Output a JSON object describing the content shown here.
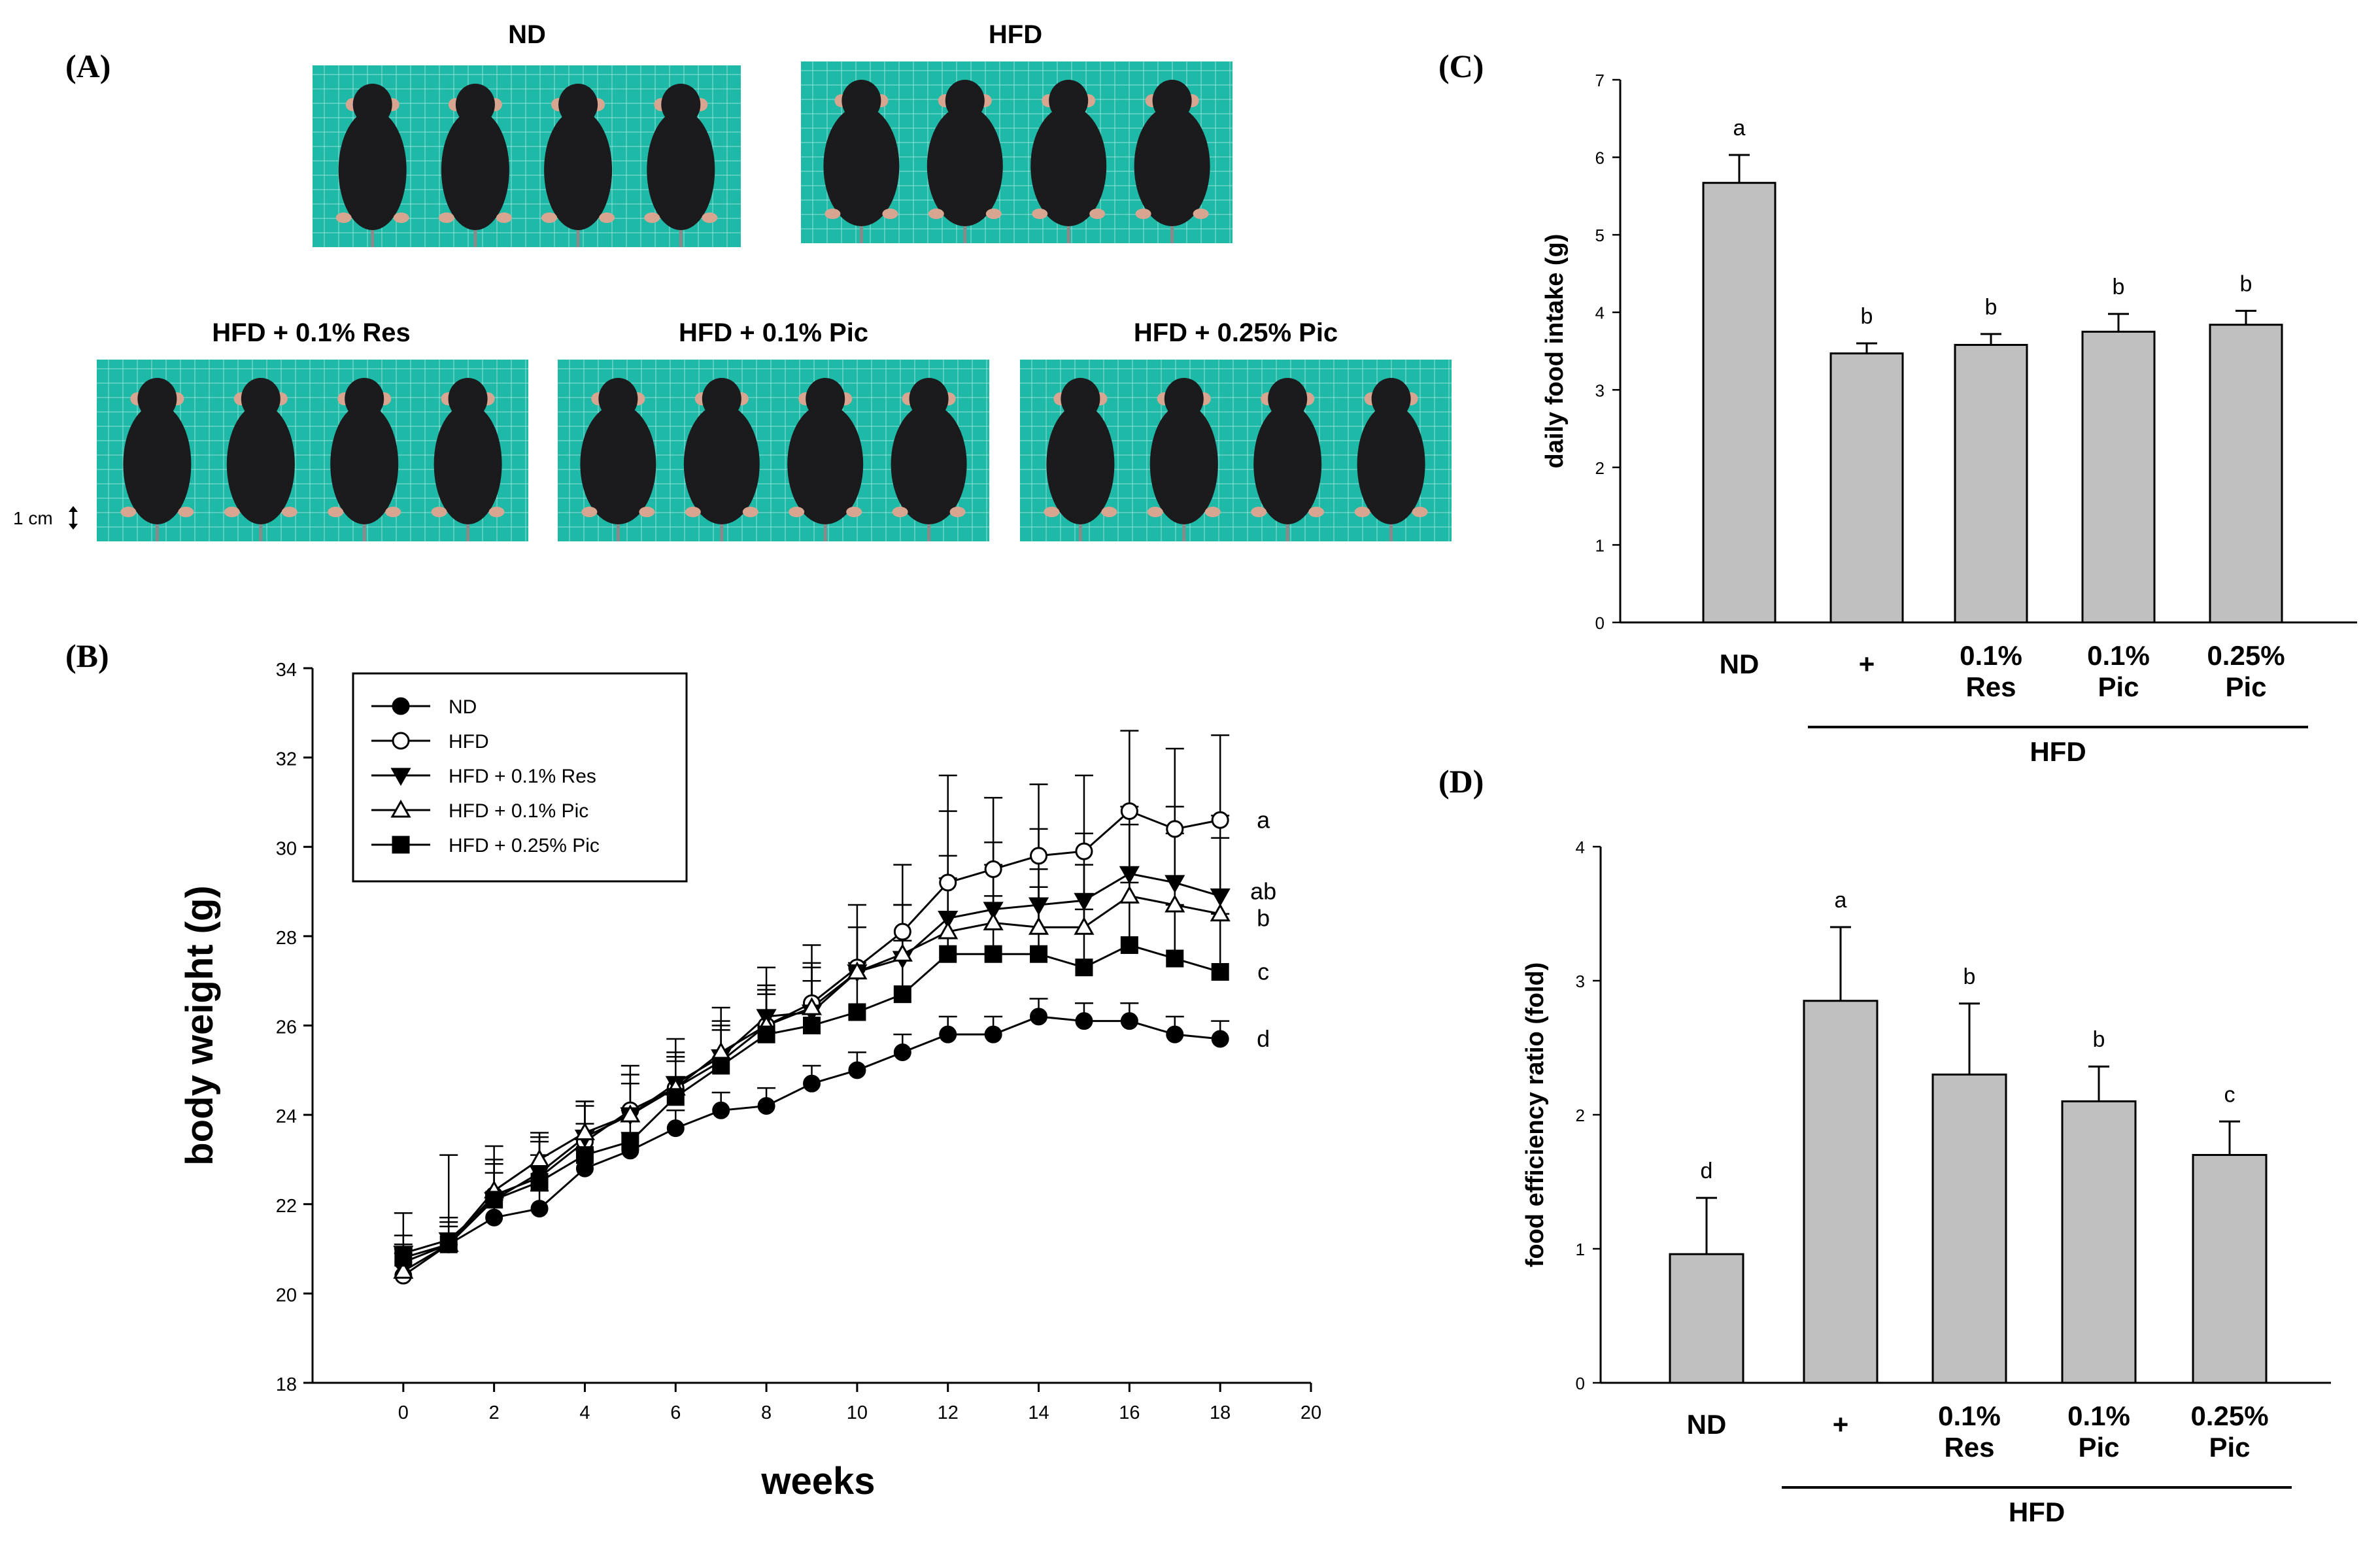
{
  "panels": {
    "a": "(A)",
    "b": "(B)",
    "c": "(C)",
    "d": "(D)"
  },
  "photos": {
    "titles": [
      "ND",
      "HFD",
      "HFD + 0.1% Res",
      "HFD + 0.1% Pic",
      "HFD + 0.25% Pic"
    ],
    "scale_label": "1 cm",
    "colors": {
      "mat": "#1fb9a8",
      "grid": "#9ee6dc",
      "mouse": "#1b1b1d",
      "ear": "#d8a690"
    }
  },
  "chart_data": [
    {
      "id": "B",
      "type": "line",
      "title": "",
      "xlabel": "weeks",
      "ylabel": "body weight (g)",
      "xlim": [
        -2,
        20
      ],
      "ylim": [
        18,
        34
      ],
      "xticks": [
        0,
        2,
        4,
        6,
        8,
        10,
        12,
        14,
        16,
        18,
        20
      ],
      "yticks": [
        18,
        20,
        22,
        24,
        26,
        28,
        30,
        32,
        34
      ],
      "x": [
        0,
        1,
        2,
        3,
        4,
        5,
        6,
        7,
        8,
        9,
        10,
        11,
        12,
        13,
        14,
        15,
        16,
        17,
        18
      ],
      "legend_position": "top-left",
      "series": [
        {
          "name": "ND",
          "marker": "circle-filled",
          "values": [
            20.7,
            21.1,
            21.7,
            21.9,
            22.8,
            23.2,
            23.7,
            24.1,
            24.2,
            24.7,
            25.0,
            25.4,
            25.8,
            25.8,
            26.2,
            26.1,
            26.1,
            25.8,
            25.7
          ],
          "errors": [
            0.4,
            0.4,
            0.4,
            0.4,
            0.4,
            0.4,
            0.4,
            0.4,
            0.4,
            0.4,
            0.4,
            0.4,
            0.4,
            0.4,
            0.4,
            0.4,
            0.4,
            0.4,
            0.4
          ]
        },
        {
          "name": "HFD",
          "marker": "circle-open",
          "values": [
            20.4,
            21.1,
            22.2,
            22.6,
            23.4,
            24.1,
            24.6,
            25.2,
            26.0,
            26.5,
            27.3,
            28.1,
            29.2,
            29.5,
            29.8,
            29.9,
            30.8,
            30.4,
            30.6
          ],
          "errors": [
            0.5,
            0.6,
            0.7,
            0.8,
            0.9,
            1.0,
            1.1,
            1.2,
            1.3,
            1.3,
            1.4,
            1.5,
            1.6,
            1.6,
            1.6,
            1.7,
            1.8,
            1.8,
            1.9
          ]
        },
        {
          "name": "HFD + 0.1% Res",
          "marker": "triangle-down-filled",
          "values": [
            20.9,
            21.2,
            22.1,
            22.7,
            23.5,
            24.0,
            24.7,
            25.3,
            26.2,
            26.3,
            27.2,
            27.5,
            28.4,
            28.6,
            28.7,
            28.8,
            29.4,
            29.2,
            28.9
          ],
          "errors": [
            0.9,
            1.9,
            1.2,
            0.8,
            0.8,
            0.9,
            0.7,
            0.7,
            0.7,
            1.1,
            1.0,
            1.2,
            1.4,
            1.5,
            1.7,
            1.5,
            1.5,
            1.7,
            1.8
          ]
        },
        {
          "name": "HFD + 0.1% Pic",
          "marker": "triangle-up-open",
          "values": [
            20.5,
            21.1,
            22.3,
            23.0,
            23.6,
            24.0,
            24.6,
            25.4,
            26.0,
            26.4,
            27.2,
            27.6,
            28.1,
            28.3,
            28.2,
            28.2,
            28.9,
            28.7,
            28.5
          ],
          "errors": [
            0.5,
            0.6,
            0.7,
            0.6,
            0.6,
            0.7,
            0.7,
            0.7,
            0.8,
            0.9,
            1.0,
            1.1,
            1.2,
            1.3,
            1.3,
            1.4,
            1.6,
            1.6,
            1.7
          ]
        },
        {
          "name": "HFD + 0.25% Pic",
          "marker": "square-filled",
          "values": [
            20.8,
            21.1,
            22.1,
            22.5,
            23.1,
            23.4,
            24.4,
            25.1,
            25.8,
            26.0,
            26.3,
            26.7,
            27.6,
            27.6,
            27.6,
            27.3,
            27.8,
            27.5,
            27.2
          ],
          "errors": [
            0.5,
            0.5,
            0.6,
            0.6,
            0.7,
            0.7,
            0.8,
            0.8,
            0.9,
            1.0,
            1.1,
            1.2,
            4.0,
            1.3,
            1.5,
            1.3,
            1.4,
            1.2,
            1.3
          ]
        }
      ],
      "annotations": [
        "a",
        "ab",
        "b",
        "c",
        "d"
      ]
    },
    {
      "id": "C",
      "type": "bar",
      "title": "",
      "ylabel": "daily food intake (g)",
      "ylim": [
        0,
        7
      ],
      "yticks": [
        0,
        1,
        2,
        3,
        4,
        5,
        6,
        7
      ],
      "categories": [
        "ND",
        "+",
        "0.1% Res",
        "0.1% Pic",
        "0.25% Pic"
      ],
      "values": [
        5.67,
        3.47,
        3.58,
        3.75,
        3.84
      ],
      "errors": [
        0.36,
        0.13,
        0.14,
        0.23,
        0.18
      ],
      "significance": [
        "a",
        "b",
        "b",
        "b",
        "b"
      ],
      "group_label": "HFD",
      "bar_color": "#c0c0c0"
    },
    {
      "id": "D",
      "type": "bar",
      "title": "",
      "ylabel": "food efficiency ratio (fold)",
      "ylim": [
        0,
        4
      ],
      "yticks": [
        0,
        1,
        2,
        3,
        4
      ],
      "categories": [
        "ND",
        "+",
        "0.1% Res",
        "0.1% Pic",
        "0.25% Pic"
      ],
      "values": [
        0.96,
        2.85,
        2.3,
        2.1,
        1.7
      ],
      "errors": [
        0.42,
        0.55,
        0.53,
        0.26,
        0.25
      ],
      "significance": [
        "d",
        "a",
        "b",
        "b",
        "c"
      ],
      "group_label": "HFD",
      "bar_color": "#c0c0c0"
    }
  ]
}
